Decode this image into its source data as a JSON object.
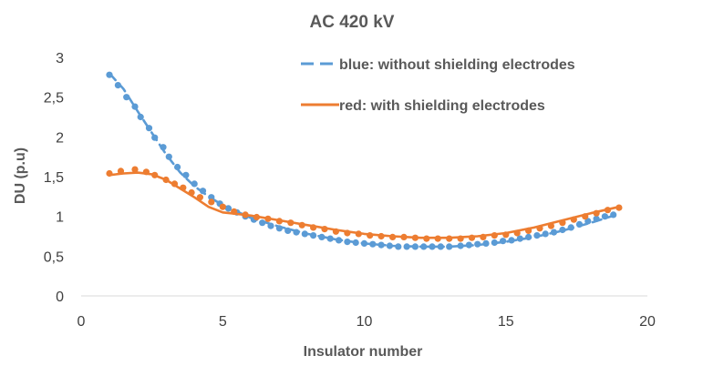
{
  "chart_data": {
    "type": "scatter",
    "title": "AC 420 kV",
    "xlabel": "Insulator number",
    "ylabel": "DU (p.u)",
    "xlim": [
      0,
      20
    ],
    "ylim": [
      0,
      3
    ],
    "x_ticks": [
      {
        "value": 0,
        "label": "0"
      },
      {
        "value": 5,
        "label": "5"
      },
      {
        "value": 10,
        "label": "10"
      },
      {
        "value": 15,
        "label": "15"
      },
      {
        "value": 20,
        "label": "20"
      }
    ],
    "y_ticks": [
      {
        "value": 0,
        "label": "0"
      },
      {
        "value": 0.5,
        "label": "0,5"
      },
      {
        "value": 1,
        "label": "1"
      },
      {
        "value": 1.5,
        "label": "1,5"
      },
      {
        "value": 2,
        "label": "2"
      },
      {
        "value": 2.5,
        "label": "2,5"
      },
      {
        "value": 3,
        "label": "3"
      }
    ],
    "grid": false,
    "legend_position": "top-right",
    "series": [
      {
        "name": "blue: without shielding electrodes",
        "color": "#5b9bd5",
        "line_style": "dashed",
        "points": [
          [
            1,
            2.78
          ],
          [
            1.3,
            2.65
          ],
          [
            1.6,
            2.5
          ],
          [
            1.9,
            2.38
          ],
          [
            2.1,
            2.25
          ],
          [
            2.4,
            2.11
          ],
          [
            2.6,
            1.99
          ],
          [
            2.9,
            1.87
          ],
          [
            3.1,
            1.75
          ],
          [
            3.4,
            1.62
          ],
          [
            3.7,
            1.52
          ],
          [
            4.0,
            1.41
          ],
          [
            4.3,
            1.32
          ],
          [
            4.6,
            1.24
          ],
          [
            4.9,
            1.16
          ],
          [
            5.2,
            1.1
          ],
          [
            5.5,
            1.05
          ],
          [
            5.8,
            1.0
          ],
          [
            6.1,
            0.96
          ],
          [
            6.4,
            0.92
          ],
          [
            6.7,
            0.88
          ],
          [
            7.0,
            0.85
          ],
          [
            7.3,
            0.82
          ],
          [
            7.6,
            0.8
          ],
          [
            7.9,
            0.78
          ],
          [
            8.2,
            0.76
          ],
          [
            8.5,
            0.74
          ],
          [
            8.8,
            0.72
          ],
          [
            9.1,
            0.7
          ],
          [
            9.4,
            0.68
          ],
          [
            9.7,
            0.67
          ],
          [
            10.0,
            0.66
          ],
          [
            10.3,
            0.65
          ],
          [
            10.6,
            0.64
          ],
          [
            10.9,
            0.63
          ],
          [
            11.2,
            0.62
          ],
          [
            11.5,
            0.62
          ],
          [
            11.8,
            0.62
          ],
          [
            12.1,
            0.62
          ],
          [
            12.4,
            0.62
          ],
          [
            12.7,
            0.62
          ],
          [
            13.0,
            0.62
          ],
          [
            13.4,
            0.63
          ],
          [
            13.7,
            0.64
          ],
          [
            14.0,
            0.65
          ],
          [
            14.3,
            0.66
          ],
          [
            14.6,
            0.67
          ],
          [
            14.9,
            0.69
          ],
          [
            15.2,
            0.7
          ],
          [
            15.5,
            0.72
          ],
          [
            15.8,
            0.74
          ],
          [
            16.1,
            0.76
          ],
          [
            16.4,
            0.78
          ],
          [
            16.7,
            0.8
          ],
          [
            17.0,
            0.83
          ],
          [
            17.3,
            0.86
          ],
          [
            17.6,
            0.9
          ],
          [
            17.9,
            0.94
          ],
          [
            18.2,
            0.97
          ],
          [
            18.5,
            1.0
          ],
          [
            18.8,
            1.02
          ]
        ],
        "fit": [
          [
            1,
            2.8
          ],
          [
            1.5,
            2.6
          ],
          [
            2,
            2.32
          ],
          [
            2.5,
            2.05
          ],
          [
            3,
            1.78
          ],
          [
            3.5,
            1.55
          ],
          [
            4,
            1.38
          ],
          [
            4.5,
            1.25
          ],
          [
            5,
            1.14
          ],
          [
            5.5,
            1.06
          ],
          [
            6,
            0.98
          ],
          [
            7,
            0.87
          ],
          [
            8,
            0.78
          ],
          [
            9,
            0.71
          ],
          [
            10,
            0.66
          ],
          [
            11,
            0.63
          ],
          [
            12,
            0.62
          ],
          [
            13,
            0.62
          ],
          [
            14,
            0.64
          ],
          [
            15,
            0.68
          ],
          [
            16,
            0.74
          ],
          [
            17,
            0.82
          ],
          [
            18,
            0.92
          ],
          [
            19,
            1.03
          ]
        ]
      },
      {
        "name": "red: with shielding electrodes",
        "color": "#ed7d31",
        "line_style": "solid",
        "points": [
          [
            1,
            1.54
          ],
          [
            1.4,
            1.57
          ],
          [
            1.9,
            1.59
          ],
          [
            2.3,
            1.56
          ],
          [
            2.6,
            1.52
          ],
          [
            3.0,
            1.46
          ],
          [
            3.3,
            1.41
          ],
          [
            3.6,
            1.36
          ],
          [
            3.9,
            1.3
          ],
          [
            4.2,
            1.24
          ],
          [
            4.6,
            1.18
          ],
          [
            5.0,
            1.12
          ],
          [
            5.4,
            1.06
          ],
          [
            5.8,
            1.02
          ],
          [
            6.2,
            0.99
          ],
          [
            6.6,
            0.97
          ],
          [
            7.0,
            0.94
          ],
          [
            7.4,
            0.92
          ],
          [
            7.8,
            0.89
          ],
          [
            8.2,
            0.86
          ],
          [
            8.6,
            0.84
          ],
          [
            9.0,
            0.81
          ],
          [
            9.4,
            0.79
          ],
          [
            9.8,
            0.78
          ],
          [
            10.2,
            0.76
          ],
          [
            10.6,
            0.75
          ],
          [
            11.0,
            0.74
          ],
          [
            11.4,
            0.74
          ],
          [
            11.8,
            0.73
          ],
          [
            12.2,
            0.72
          ],
          [
            12.6,
            0.72
          ],
          [
            13.0,
            0.72
          ],
          [
            13.4,
            0.72
          ],
          [
            13.8,
            0.73
          ],
          [
            14.2,
            0.74
          ],
          [
            14.6,
            0.76
          ],
          [
            15.0,
            0.77
          ],
          [
            15.4,
            0.79
          ],
          [
            15.8,
            0.82
          ],
          [
            16.2,
            0.85
          ],
          [
            16.6,
            0.88
          ],
          [
            17.0,
            0.92
          ],
          [
            17.4,
            0.96
          ],
          [
            17.8,
            1.0
          ],
          [
            18.2,
            1.04
          ],
          [
            18.6,
            1.08
          ],
          [
            19.0,
            1.11
          ]
        ],
        "fit": [
          [
            1,
            1.52
          ],
          [
            1.5,
            1.54
          ],
          [
            2,
            1.55
          ],
          [
            2.5,
            1.53
          ],
          [
            3,
            1.46
          ],
          [
            3.5,
            1.35
          ],
          [
            4,
            1.24
          ],
          [
            4.5,
            1.12
          ],
          [
            5,
            1.05
          ],
          [
            5.5,
            1.03
          ],
          [
            6,
            1.01
          ],
          [
            7,
            0.95
          ],
          [
            8,
            0.89
          ],
          [
            9,
            0.83
          ],
          [
            10,
            0.78
          ],
          [
            11,
            0.75
          ],
          [
            12,
            0.73
          ],
          [
            13,
            0.73
          ],
          [
            14,
            0.75
          ],
          [
            15,
            0.79
          ],
          [
            16,
            0.86
          ],
          [
            17,
            0.95
          ],
          [
            18,
            1.04
          ],
          [
            19,
            1.12
          ]
        ]
      }
    ]
  }
}
